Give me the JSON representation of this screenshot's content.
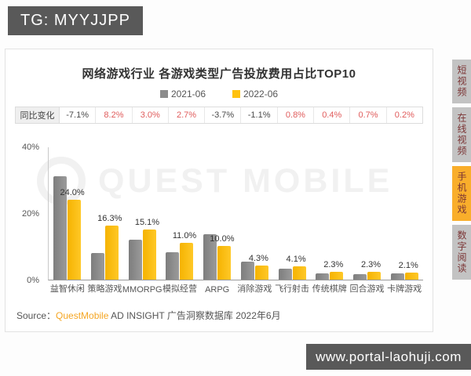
{
  "page": {
    "tg_banner": "TG: MYYJJPP",
    "site_banner": "www.portal-laohuji.com"
  },
  "card": {
    "title": "网络游戏行业 各游戏类型广告投放费用占比TOP10",
    "legend": [
      {
        "label": "2021-06",
        "color": "#8c8c8c"
      },
      {
        "label": "2022-06",
        "color": "#ffc20e"
      }
    ],
    "yoy_header": "同比变化",
    "watermark": "QUEST MOBILE",
    "source": {
      "prefix": "Source：",
      "brand": "QuestMobile",
      "suffix": " AD INSIGHT 广告洞察数据库 2022年6月"
    }
  },
  "sidebar_tabs": [
    {
      "label": "短视频",
      "active": false
    },
    {
      "label": "在线视频",
      "active": false
    },
    {
      "label": "手机游戏",
      "active": true
    },
    {
      "label": "数字阅读",
      "active": false
    }
  ],
  "chart_data": {
    "type": "bar",
    "title": "网络游戏行业 各游戏类型广告投放费用占比TOP10",
    "categories": [
      "益智休闲",
      "策略游戏",
      "MMORPG",
      "模拟经营",
      "ARPG",
      "消除游戏",
      "飞行射击",
      "传统棋牌",
      "回合游戏",
      "卡牌游戏"
    ],
    "series": [
      {
        "name": "2021-06",
        "color": "#8c8c8c",
        "values": [
          31.1,
          8.1,
          12.1,
          8.3,
          13.7,
          5.4,
          3.3,
          1.9,
          1.6,
          1.9
        ]
      },
      {
        "name": "2022-06",
        "color": "#ffc20e",
        "values": [
          24.0,
          16.3,
          15.1,
          11.0,
          10.0,
          4.3,
          4.1,
          2.3,
          2.3,
          2.1
        ],
        "labels": [
          "24.0%",
          "16.3%",
          "15.1%",
          "11.0%",
          "10.0%",
          "4.3%",
          "4.1%",
          "2.3%",
          "2.3%",
          "2.1%"
        ]
      }
    ],
    "yoy_change": [
      "-7.1%",
      "8.2%",
      "3.0%",
      "2.7%",
      "-3.7%",
      "-1.1%",
      "0.8%",
      "0.4%",
      "0.7%",
      "0.2%"
    ],
    "y_ticks": [
      "40%",
      "20%",
      "0%"
    ],
    "ylim": [
      0,
      40
    ],
    "xlabel": "",
    "ylabel": "",
    "grid": false,
    "legend_position": "top",
    "data_labels_series": "2022-06"
  }
}
